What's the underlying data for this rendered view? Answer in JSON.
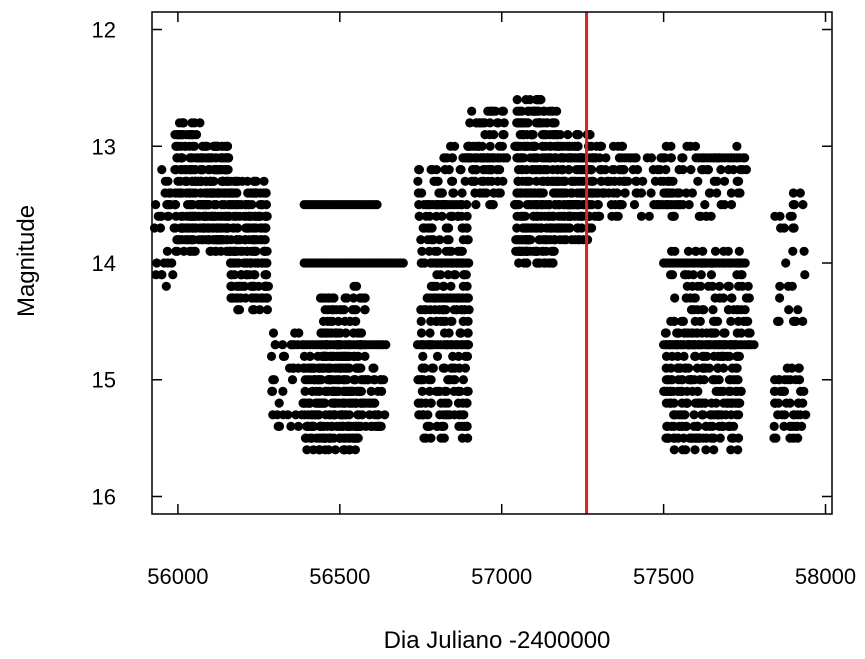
{
  "chart_data": {
    "type": "scatter",
    "title": "",
    "xlabel": "Dia Juliano -2400000",
    "ylabel": "Magnitude",
    "xlim": [
      55920,
      58020
    ],
    "ylim": [
      16.15,
      11.85
    ],
    "y_inverted": true,
    "grid": false,
    "x_ticks": [
      56000,
      56500,
      57000,
      57500,
      58000
    ],
    "y_ticks": [
      12,
      13,
      14,
      15,
      16
    ],
    "point_color": "#000000",
    "reference_line": {
      "x": 57262,
      "color": "#e02020"
    },
    "observation_clusters": [
      {
        "x_range": [
          55920,
          55990
        ],
        "y_range": [
          13.2,
          14.2
        ],
        "count": 30
      },
      {
        "x_range": [
          55990,
          56070
        ],
        "y_range": [
          12.8,
          13.9
        ],
        "count": 160
      },
      {
        "x_range": [
          56070,
          56160
        ],
        "y_range": [
          13.0,
          13.9
        ],
        "count": 230
      },
      {
        "x_range": [
          56160,
          56280
        ],
        "y_range": [
          13.3,
          14.4
        ],
        "count": 220
      },
      {
        "x_range": [
          56280,
          56390
        ],
        "y_range": [
          14.6,
          15.4
        ],
        "count": 40
      },
      {
        "x_range": [
          56390,
          56560
        ],
        "y_range": [
          14.8,
          15.6
        ],
        "count": 270
      },
      {
        "x_range": [
          56440,
          56580
        ],
        "y_range": [
          14.2,
          14.9
        ],
        "count": 90
      },
      {
        "x_range": [
          56560,
          56640
        ],
        "y_range": [
          14.9,
          15.4
        ],
        "count": 50
      },
      {
        "x_range": [
          56740,
          56900
        ],
        "y_range": [
          13.8,
          15.5
        ],
        "count": 210
      },
      {
        "x_range": [
          56740,
          56900
        ],
        "y_range": [
          13.0,
          13.8
        ],
        "count": 90
      },
      {
        "x_range": [
          56900,
          57010
        ],
        "y_range": [
          12.7,
          13.5
        ],
        "count": 90
      },
      {
        "x_range": [
          57040,
          57170
        ],
        "y_range": [
          12.6,
          14.0
        ],
        "count": 320
      },
      {
        "x_range": [
          57170,
          57280
        ],
        "y_range": [
          12.9,
          13.8
        ],
        "count": 190
      },
      {
        "x_range": [
          57280,
          57380
        ],
        "y_range": [
          13.0,
          13.6
        ],
        "count": 70
      },
      {
        "x_range": [
          57380,
          57530
        ],
        "y_range": [
          13.0,
          13.6
        ],
        "count": 50
      },
      {
        "x_range": [
          57500,
          57740
        ],
        "y_range": [
          14.6,
          15.6
        ],
        "count": 260
      },
      {
        "x_range": [
          57520,
          57770
        ],
        "y_range": [
          13.9,
          14.7
        ],
        "count": 110
      },
      {
        "x_range": [
          57520,
          57760
        ],
        "y_range": [
          13.0,
          13.6
        ],
        "count": 60
      },
      {
        "x_range": [
          57840,
          57940
        ],
        "y_range": [
          14.9,
          15.5
        ],
        "count": 50
      },
      {
        "x_range": [
          57840,
          57940
        ],
        "y_range": [
          13.4,
          14.6
        ],
        "count": 30
      }
    ],
    "horizontal_runs": [
      {
        "y": 13.5,
        "x_range": [
          56390,
          56620
        ]
      },
      {
        "y": 14.0,
        "x_range": [
          56390,
          56700
        ]
      },
      {
        "y": 14.7,
        "x_range": [
          56390,
          56650
        ]
      },
      {
        "y": 13.5,
        "x_range": [
          56760,
          56880
        ]
      },
      {
        "y": 14.0,
        "x_range": [
          56780,
          56880
        ]
      },
      {
        "y": 14.3,
        "x_range": [
          56770,
          56880
        ]
      },
      {
        "y": 14.7,
        "x_range": [
          56740,
          56890
        ]
      },
      {
        "y": 13.1,
        "x_range": [
          56880,
          57020
        ]
      },
      {
        "y": 13.5,
        "x_range": [
          57470,
          57560
        ]
      },
      {
        "y": 14.0,
        "x_range": [
          57500,
          57760
        ]
      },
      {
        "y": 14.7,
        "x_range": [
          57500,
          57780
        ]
      },
      {
        "y": 13.1,
        "x_range": [
          57600,
          57740
        ]
      }
    ]
  }
}
